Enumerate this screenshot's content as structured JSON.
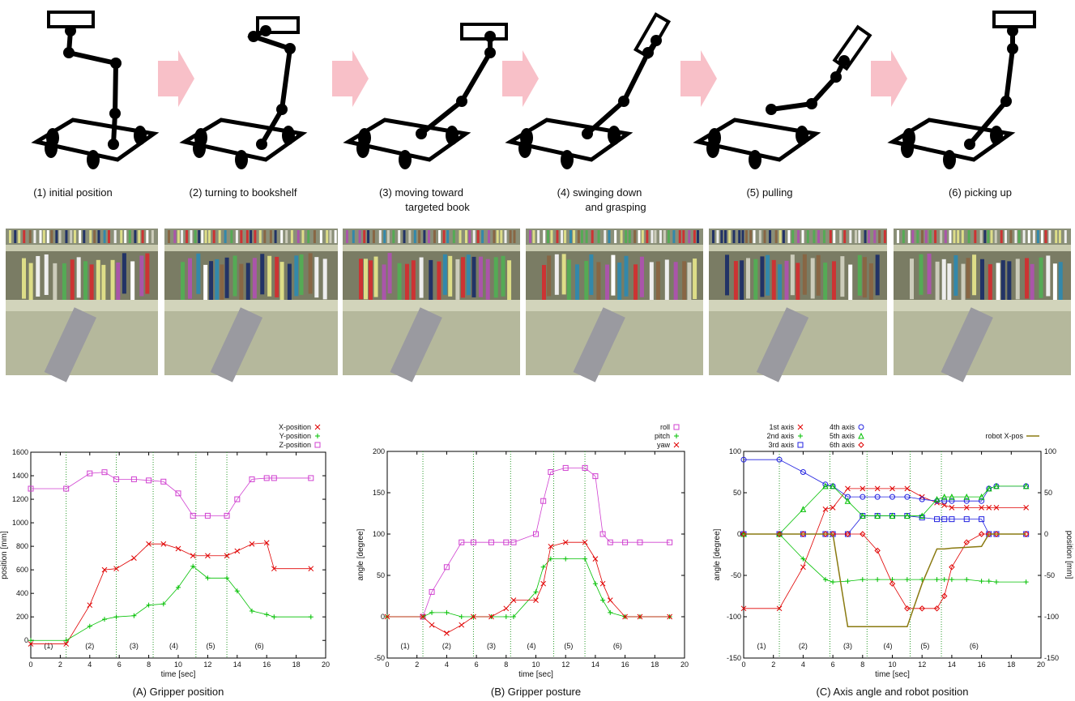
{
  "steps": [
    [
      "(1)  initial position"
    ],
    [
      "(2) turning to bookshelf"
    ],
    [
      "(3)    moving toward",
      "targeted book"
    ],
    [
      "(4)   swinging down",
      "and grasping"
    ],
    [
      "(5) pulling"
    ],
    [
      "(6)   picking up"
    ]
  ],
  "chart_data": [
    {
      "type": "line",
      "caption": "(A) Gripper position",
      "xlabel": "time [sec]",
      "ylabel": "position [mm]",
      "x": [
        0,
        2.4,
        4,
        5,
        5.8,
        7,
        8,
        9,
        10,
        11,
        12,
        13.3,
        14,
        15,
        16,
        16.5,
        19
      ],
      "series": [
        {
          "name": "X-position",
          "color": "#e00000",
          "marker": "x",
          "values": [
            -30,
            -30,
            300,
            600,
            610,
            700,
            820,
            820,
            780,
            720,
            720,
            720,
            760,
            820,
            830,
            610,
            610
          ]
        },
        {
          "name": "Y-position",
          "color": "#00c000",
          "marker": "+",
          "values": [
            0,
            0,
            120,
            180,
            200,
            210,
            300,
            310,
            450,
            630,
            530,
            530,
            420,
            250,
            220,
            200,
            200
          ]
        },
        {
          "name": "Z-position",
          "color": "#d040d0",
          "marker": "square",
          "values": [
            1290,
            1290,
            1420,
            1430,
            1370,
            1370,
            1360,
            1350,
            1250,
            1060,
            1060,
            1060,
            1200,
            1370,
            1380,
            1380,
            1380
          ]
        }
      ],
      "xlim": [
        0,
        20
      ],
      "xticks": [
        0,
        2,
        4,
        6,
        8,
        10,
        12,
        14,
        16,
        18,
        20
      ],
      "ylim": [
        -150,
        1600
      ],
      "yticks": [
        0,
        200,
        400,
        600,
        800,
        1000,
        1200,
        1400,
        1600
      ],
      "phase_lines": [
        2.4,
        5.8,
        8.3,
        11.2,
        13.3
      ],
      "phase_labels": [
        {
          "x": 1.2,
          "label": "(1)"
        },
        {
          "x": 4,
          "label": "(2)"
        },
        {
          "x": 7,
          "label": "(3)"
        },
        {
          "x": 9.7,
          "label": "(4)"
        },
        {
          "x": 12.2,
          "label": "(5)"
        },
        {
          "x": 15.5,
          "label": "(6)"
        }
      ],
      "legend": "top-right"
    },
    {
      "type": "line",
      "caption": "(B) Gripper posture",
      "xlabel": "time [sec]",
      "ylabel": "angle [degree]",
      "x": [
        0,
        2.4,
        3,
        4,
        5,
        5.8,
        7,
        8,
        8.5,
        10,
        10.5,
        11,
        12,
        13.3,
        14,
        14.5,
        15,
        16,
        17,
        19
      ],
      "series": [
        {
          "name": "roll",
          "color": "#d040d0",
          "marker": "square",
          "values": [
            null,
            0,
            30,
            60,
            90,
            90,
            90,
            90,
            90,
            100,
            140,
            175,
            180,
            180,
            170,
            100,
            90,
            90,
            90,
            90
          ]
        },
        {
          "name": "pitch",
          "color": "#00c000",
          "marker": "+",
          "values": [
            0,
            0,
            5,
            5,
            0,
            0,
            0,
            0,
            0,
            30,
            60,
            70,
            70,
            70,
            40,
            20,
            5,
            0,
            0,
            0
          ]
        },
        {
          "name": "yaw",
          "color": "#e00000",
          "marker": "x",
          "values": [
            0,
            0,
            -10,
            -20,
            -10,
            0,
            0,
            10,
            20,
            20,
            40,
            85,
            90,
            90,
            70,
            40,
            20,
            0,
            0,
            0
          ]
        }
      ],
      "xlim": [
        0,
        20
      ],
      "xticks": [
        0,
        2,
        4,
        6,
        8,
        10,
        12,
        14,
        16,
        18,
        20
      ],
      "ylim": [
        -50,
        200
      ],
      "yticks": [
        -50,
        0,
        50,
        100,
        150,
        200
      ],
      "phase_lines": [
        2.4,
        5.8,
        8.3,
        11.2,
        13.3
      ],
      "phase_labels": [
        {
          "x": 1.2,
          "label": "(1)"
        },
        {
          "x": 4,
          "label": "(2)"
        },
        {
          "x": 7,
          "label": "(3)"
        },
        {
          "x": 9.7,
          "label": "(4)"
        },
        {
          "x": 12.2,
          "label": "(5)"
        },
        {
          "x": 15.5,
          "label": "(6)"
        }
      ],
      "legend": "top-right"
    },
    {
      "type": "line",
      "caption": "(C) Axis angle and robot position",
      "xlabel": "time [sec]",
      "ylabel": "angle [degree]",
      "y2label": "position [mm]",
      "x": [
        0,
        2.4,
        4,
        5.5,
        6,
        7,
        8,
        9,
        10,
        11,
        12,
        13,
        13.5,
        14,
        15,
        16,
        16.5,
        17,
        19
      ],
      "series": [
        {
          "name": "1st axis",
          "color": "#e00000",
          "marker": "x",
          "values": [
            -90,
            -90,
            -40,
            30,
            32,
            55,
            55,
            55,
            55,
            55,
            45,
            38,
            35,
            32,
            32,
            32,
            32,
            32,
            32
          ]
        },
        {
          "name": "2nd axis",
          "color": "#00c000",
          "marker": "+",
          "values": [
            0,
            0,
            -30,
            -55,
            -58,
            -57,
            -55,
            -55,
            -55,
            -55,
            -55,
            -55,
            -55,
            -55,
            -55,
            -57,
            -57,
            -58,
            -58
          ]
        },
        {
          "name": "3rd axis",
          "color": "#2020e0",
          "marker": "square",
          "values": [
            0,
            0,
            0,
            0,
            0,
            0,
            22,
            22,
            22,
            22,
            20,
            18,
            18,
            18,
            18,
            18,
            0,
            0,
            0
          ]
        },
        {
          "name": "4th axis",
          "color": "#2020e0",
          "marker": "circle",
          "values": [
            90,
            90,
            75,
            60,
            58,
            45,
            45,
            45,
            45,
            45,
            42,
            40,
            40,
            40,
            40,
            40,
            55,
            58,
            58
          ]
        },
        {
          "name": "5th axis",
          "color": "#00c000",
          "marker": "triangle",
          "values": [
            0,
            0,
            30,
            58,
            58,
            40,
            22,
            22,
            22,
            22,
            22,
            42,
            45,
            45,
            45,
            45,
            55,
            58,
            58
          ]
        },
        {
          "name": "6th axis",
          "color": "#e00000",
          "marker": "diamond",
          "values": [
            0,
            0,
            0,
            0,
            0,
            0,
            0,
            -20,
            -60,
            -90,
            -90,
            -90,
            -75,
            -40,
            -10,
            0,
            0,
            0,
            0
          ]
        },
        {
          "name": "robot X-pos",
          "color": "#8a7a10",
          "marker": "line",
          "axis": "y2",
          "values": [
            0,
            0,
            0,
            0,
            0,
            -112,
            -112,
            -112,
            -112,
            -112,
            -60,
            -18,
            -18,
            -17,
            -16,
            -15,
            0,
            0,
            0
          ]
        }
      ],
      "xlim": [
        0,
        20
      ],
      "xticks": [
        0,
        2,
        4,
        6,
        8,
        10,
        12,
        14,
        16,
        18,
        20
      ],
      "ylim": [
        -150,
        100
      ],
      "yticks": [
        -150,
        -100,
        -50,
        0,
        50,
        100
      ],
      "y2lim": [
        -150,
        100
      ],
      "y2ticks": [
        -150,
        -100,
        -50,
        0,
        50,
        100
      ],
      "phase_lines": [
        2.4,
        5.8,
        8.3,
        11.2,
        13.3
      ],
      "phase_labels": [
        {
          "x": 1.2,
          "label": "(1)"
        },
        {
          "x": 4,
          "label": "(2)"
        },
        {
          "x": 7,
          "label": "(3)"
        },
        {
          "x": 9.7,
          "label": "(4)"
        },
        {
          "x": 12.2,
          "label": "(5)"
        },
        {
          "x": 15.5,
          "label": "(6)"
        }
      ],
      "legend": "top-right"
    }
  ]
}
